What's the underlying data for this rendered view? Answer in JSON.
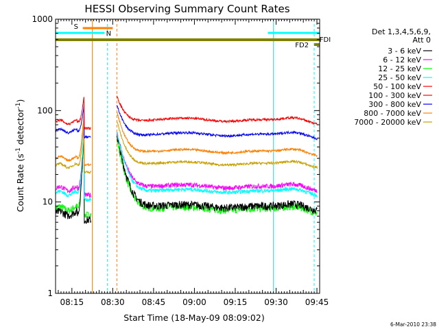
{
  "chart_data": {
    "type": "line",
    "title": "HESSI Observing Summary Count Rates",
    "xlabel": "Start Time (18-May-09 08:09:02)",
    "ylabel_main": "Count Rate (s",
    "ylabel_sup1": "-1",
    "ylabel_mid": " detector",
    "ylabel_sup2": "-1",
    "ylabel_end": ")",
    "y_scale": "log",
    "ylim": [
      1,
      1000
    ],
    "xlim_minutes": [
      0,
      97
    ],
    "x_ticks": [
      {
        "label": "08:15",
        "min": 6
      },
      {
        "label": "08:30",
        "min": 21
      },
      {
        "label": "08:45",
        "min": 36
      },
      {
        "label": "09:00",
        "min": 51
      },
      {
        "label": "09:15",
        "min": 66
      },
      {
        "label": "09:30",
        "min": 81
      },
      {
        "label": "09:45",
        "min": 96
      }
    ],
    "y_ticks": [
      {
        "label": "1",
        "v": 1
      },
      {
        "label": "10",
        "v": 10
      },
      {
        "label": "100",
        "v": 100
      },
      {
        "label": "1000",
        "v": 1000
      }
    ],
    "legend_header": [
      "Det 1,3,4,5,6,9,",
      "Att 0"
    ],
    "legend_placement": "right",
    "series": [
      {
        "name": "3 - 6 keV",
        "color": "#000000",
        "base": 8.5,
        "pre": 7.5,
        "peak": 55,
        "noise": 0.1
      },
      {
        "name": "6 - 12 keV",
        "color": "#ff00ff",
        "base": 14,
        "pre": 14,
        "peak": 60,
        "noise": 0.06
      },
      {
        "name": "12 - 25 keV",
        "color": "#00ff00",
        "base": 8,
        "pre": 8.5,
        "peak": 50,
        "noise": 0.09
      },
      {
        "name": "25 - 50 keV",
        "color": "#00ffff",
        "base": 12.5,
        "pre": 12.5,
        "peak": 60,
        "noise": 0.05
      },
      {
        "name": "50 - 100 keV",
        "color": "#ff0000",
        "base": 75,
        "pre": 75,
        "peak": 150,
        "noise": 0.03
      },
      {
        "name": "100 - 300 keV",
        "color": "#ff0000",
        "base": 75,
        "pre": 75,
        "peak": 150,
        "noise": 0.03
      },
      {
        "name": "300 - 800 keV",
        "color": "#0000ff",
        "base": 52,
        "pre": 60,
        "peak": 120,
        "noise": 0.03
      },
      {
        "name": "800 - 7000 keV",
        "color": "#ff8000",
        "base": 34,
        "pre": 30,
        "peak": 100,
        "noise": 0.03
      },
      {
        "name": "7000 - 20000 keV",
        "color": "#c8a000",
        "base": 25,
        "pre": 25,
        "peak": 80,
        "noise": 0.03
      }
    ],
    "flags": [
      {
        "label": "S",
        "color": "#ff8000",
        "start_min": 10,
        "end_min": 21,
        "level": "upper"
      },
      {
        "label": "N",
        "color": "#00ffff",
        "start_min": 0,
        "end_min": 18,
        "level": "lower"
      },
      {
        "label": "N",
        "color": "#00ffff",
        "start_min": 78,
        "end_min": 97,
        "level": "lower"
      },
      {
        "label": "FDI",
        "color": "#808000",
        "start_min": 0,
        "end_min": 97,
        "level": "bar"
      },
      {
        "label": "FD2",
        "color": "#808000",
        "start_min": 95,
        "end_min": 97,
        "level": "small"
      }
    ],
    "annotations": [
      "S",
      "N",
      "FDI",
      "FD2"
    ]
  },
  "footer": {
    "timestamp": "6-Mar-2010 23:38"
  }
}
